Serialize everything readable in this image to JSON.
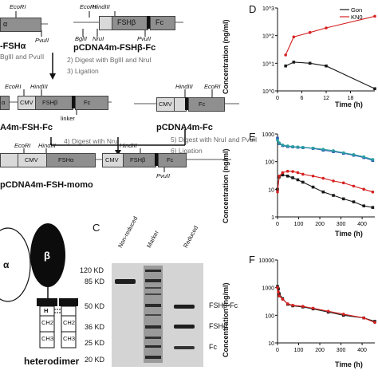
{
  "panelA": {
    "plasmid_fsha": "-FSHα",
    "plasmid_fshb": "pCDNA4m-FSHβ-Fc",
    "plasmid_fsh_fc": "A4m-FSH-Fc",
    "plasmid_pcdna4m_fc": "pCDNA4m-Fc",
    "plasmid_momo": "pCDNA4m-FSH-momo",
    "left_step": "BglII and PvuII",
    "step2": "2) Digest with BglII and NruI",
    "step3": "3) Ligation",
    "step4": "4) Digest with NruI",
    "step5": "5) Digest with NruI and PvuII",
    "step6": "6) Ligation",
    "sites": {
      "ecori": "EcoRI",
      "hindiii": "HindIII",
      "pvuii": "PvuII",
      "bglii": "BglII",
      "nrui": "NruI"
    },
    "boxes": {
      "fsha": "FSHα",
      "fshb": "FSHβ",
      "fc": "Fc",
      "cmv": "CMV",
      "alpha_trunc": "α"
    },
    "linker": "linker"
  },
  "panelB": {
    "heterodimer": "heterodimer",
    "alpha": "α",
    "beta": "β",
    "hinge": "H",
    "ch2": "CH2",
    "ch3": "CH3"
  },
  "panelC": {
    "label": "C",
    "lanes": [
      "Non-reduced",
      "Marker",
      "Reduced"
    ],
    "markers": [
      "120 KD",
      "85 KD",
      "50 KD",
      "36 KD",
      "25 KD",
      "20 KD"
    ],
    "bands": [
      "FSHβ-Fc",
      "FSHα",
      "Fc"
    ]
  },
  "panelD": {
    "label": "D",
    "ylabel": "Concentration (ng/ml)",
    "xlabel": "Time (h)",
    "legend": [
      "Gon",
      "KN0"
    ],
    "colors": {
      "gon": "#1a1a1a",
      "kn": "#d62020"
    },
    "chart_data": {
      "type": "line",
      "x_ticks": [
        "0",
        "6",
        "12",
        "18"
      ],
      "y_ticks": [
        "10^0",
        "10^1",
        "10^2",
        "10^3"
      ],
      "yscale": "log",
      "series": [
        {
          "name": "Gon",
          "x": [
            2,
            4,
            8,
            12,
            24
          ],
          "y": [
            8,
            11,
            10,
            8,
            1.2
          ]
        },
        {
          "name": "KN0",
          "x": [
            2,
            4,
            8,
            12,
            24
          ],
          "y": [
            20,
            90,
            130,
            190,
            500
          ]
        }
      ]
    }
  },
  "panelE": {
    "label": "E",
    "ylabel": "Concentration (ng/ml)",
    "xlabel": "Time (h)",
    "colors": {
      "black": "#1a1a1a",
      "red": "#d62020",
      "blue": "#2a5db0",
      "teal": "#2aa0a0"
    },
    "chart_data": {
      "type": "line",
      "x_ticks": [
        "0",
        "100",
        "200",
        "300",
        "400"
      ],
      "y_ticks": [
        "1",
        "10",
        "100",
        "1000"
      ],
      "yscale": "log",
      "series": [
        {
          "x": [
            0,
            8,
            24,
            48,
            72,
            96,
            120,
            168,
            216,
            264,
            312,
            360,
            408,
            450
          ],
          "y": [
            10,
            28,
            33,
            30,
            26,
            22,
            18,
            12,
            8,
            6,
            4.5,
            3.5,
            2.5,
            2.2
          ]
        },
        {
          "x": [
            0,
            8,
            24,
            48,
            72,
            96,
            120,
            168,
            216,
            264,
            312,
            360,
            408,
            450
          ],
          "y": [
            8,
            30,
            40,
            45,
            44,
            40,
            35,
            30,
            25,
            20,
            17,
            13,
            10,
            8
          ]
        },
        {
          "x": [
            0,
            8,
            24,
            48,
            72,
            96,
            120,
            168,
            216,
            264,
            312,
            360,
            408,
            450
          ],
          "y": [
            700,
            450,
            380,
            350,
            340,
            330,
            320,
            300,
            260,
            230,
            200,
            170,
            140,
            110
          ]
        },
        {
          "x": [
            0,
            8,
            24,
            48,
            72,
            96,
            120,
            168,
            216,
            264,
            312,
            360,
            408,
            450
          ],
          "y": [
            600,
            480,
            400,
            370,
            350,
            340,
            330,
            310,
            280,
            250,
            210,
            180,
            150,
            120
          ]
        }
      ]
    }
  },
  "panelF": {
    "label": "F",
    "ylabel": "Concentration (ng/ml)",
    "xlabel": "Time (h)",
    "colors": {
      "black": "#1a1a1a",
      "red": "#d62020"
    },
    "chart_data": {
      "type": "line",
      "x_ticks": [
        "0",
        "100",
        "200",
        "300",
        "400"
      ],
      "y_ticks": [
        "10",
        "100",
        "1000",
        "10000"
      ],
      "yscale": "log",
      "series": [
        {
          "x": [
            0,
            4,
            8,
            24,
            48,
            72,
            120,
            168,
            240,
            312,
            408,
            460
          ],
          "y": [
            1100,
            900,
            600,
            400,
            250,
            220,
            200,
            170,
            130,
            100,
            80,
            60
          ]
        },
        {
          "x": [
            0,
            4,
            8,
            24,
            48,
            72,
            120,
            168,
            240,
            312,
            408,
            460
          ],
          "y": [
            1000,
            700,
            500,
            380,
            260,
            230,
            210,
            180,
            140,
            110,
            80,
            55
          ]
        }
      ]
    }
  }
}
